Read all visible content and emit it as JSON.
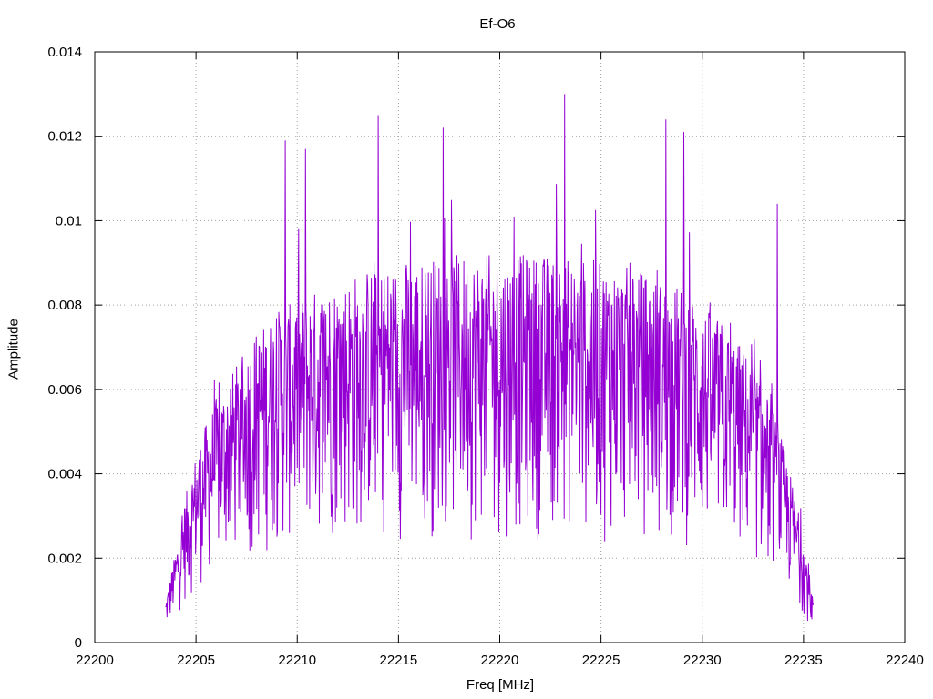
{
  "colors": {
    "series": "#9400d3",
    "grid": "#a0a0a0",
    "axis": "#000000"
  },
  "chart_data": {
    "type": "line",
    "title": "Ef-O6",
    "xlabel": "Freq [MHz]",
    "ylabel": "Amplitude",
    "xlim": [
      22200,
      22240
    ],
    "ylim": [
      0,
      0.014
    ],
    "x_ticks": [
      "22200",
      "22205",
      "22210",
      "22215",
      "22220",
      "22225",
      "22230",
      "22235",
      "22240"
    ],
    "y_ticks": [
      "0",
      "0.002",
      "0.004",
      "0.006",
      "0.008",
      "0.01",
      "0.012",
      "0.014"
    ],
    "grid": true,
    "legend": "none",
    "series": [
      {
        "x": [
          22203.5,
          22204.0,
          22204.5,
          22205.0,
          22205.5,
          22206.0,
          22206.5,
          22207.0,
          22207.5,
          22208.0,
          22208.5,
          22209.0,
          22209.5,
          22210.0,
          22210.5,
          22211.0,
          22211.5,
          22212.0,
          22212.5,
          22213.0,
          22213.5,
          22214.0,
          22214.5,
          22215.0,
          22215.5,
          22216.0,
          22216.5,
          22217.0,
          22217.5,
          22218.0,
          22218.5,
          22219.0,
          22219.5,
          22220.0,
          22220.5,
          22221.0,
          22221.5,
          22222.0,
          22222.5,
          22223.0,
          22223.5,
          22224.0,
          22224.5,
          22225.0,
          22225.5,
          22226.0,
          22226.5,
          22227.0,
          22227.5,
          22228.0,
          22228.5,
          22229.0,
          22229.5,
          22230.0,
          22230.5,
          22231.0,
          22231.5,
          22232.0,
          22232.5,
          22233.0,
          22233.5,
          22234.0,
          22234.5,
          22235.0,
          22235.5
        ],
        "y": [
          0.001,
          0.0022,
          0.0035,
          0.0045,
          0.0052,
          0.0058,
          0.0062,
          0.0066,
          0.007,
          0.0074,
          0.0076,
          0.0079,
          0.008,
          0.0081,
          0.0083,
          0.0084,
          0.0085,
          0.0086,
          0.0087,
          0.0088,
          0.0089,
          0.0089,
          0.009,
          0.009,
          0.0091,
          0.0091,
          0.0091,
          0.0092,
          0.0092,
          0.0092,
          0.0092,
          0.0092,
          0.0092,
          0.0092,
          0.0092,
          0.0092,
          0.0092,
          0.0092,
          0.0092,
          0.0092,
          0.0091,
          0.0091,
          0.0091,
          0.009,
          0.009,
          0.0089,
          0.0089,
          0.0088,
          0.0087,
          0.0086,
          0.0085,
          0.0084,
          0.0082,
          0.008,
          0.0078,
          0.0076,
          0.0073,
          0.007,
          0.0066,
          0.0061,
          0.0055,
          0.0047,
          0.0037,
          0.0025,
          0.001
        ]
      }
    ],
    "peaks_x": [
      22209.4,
      22210.4,
      22214.0,
      22217.2,
      22223.2,
      22228.2,
      22229.1,
      22233.7
    ],
    "peaks_y": [
      0.0119,
      0.0117,
      0.0125,
      0.0122,
      0.013,
      0.0124,
      0.0121,
      0.0104
    ]
  }
}
